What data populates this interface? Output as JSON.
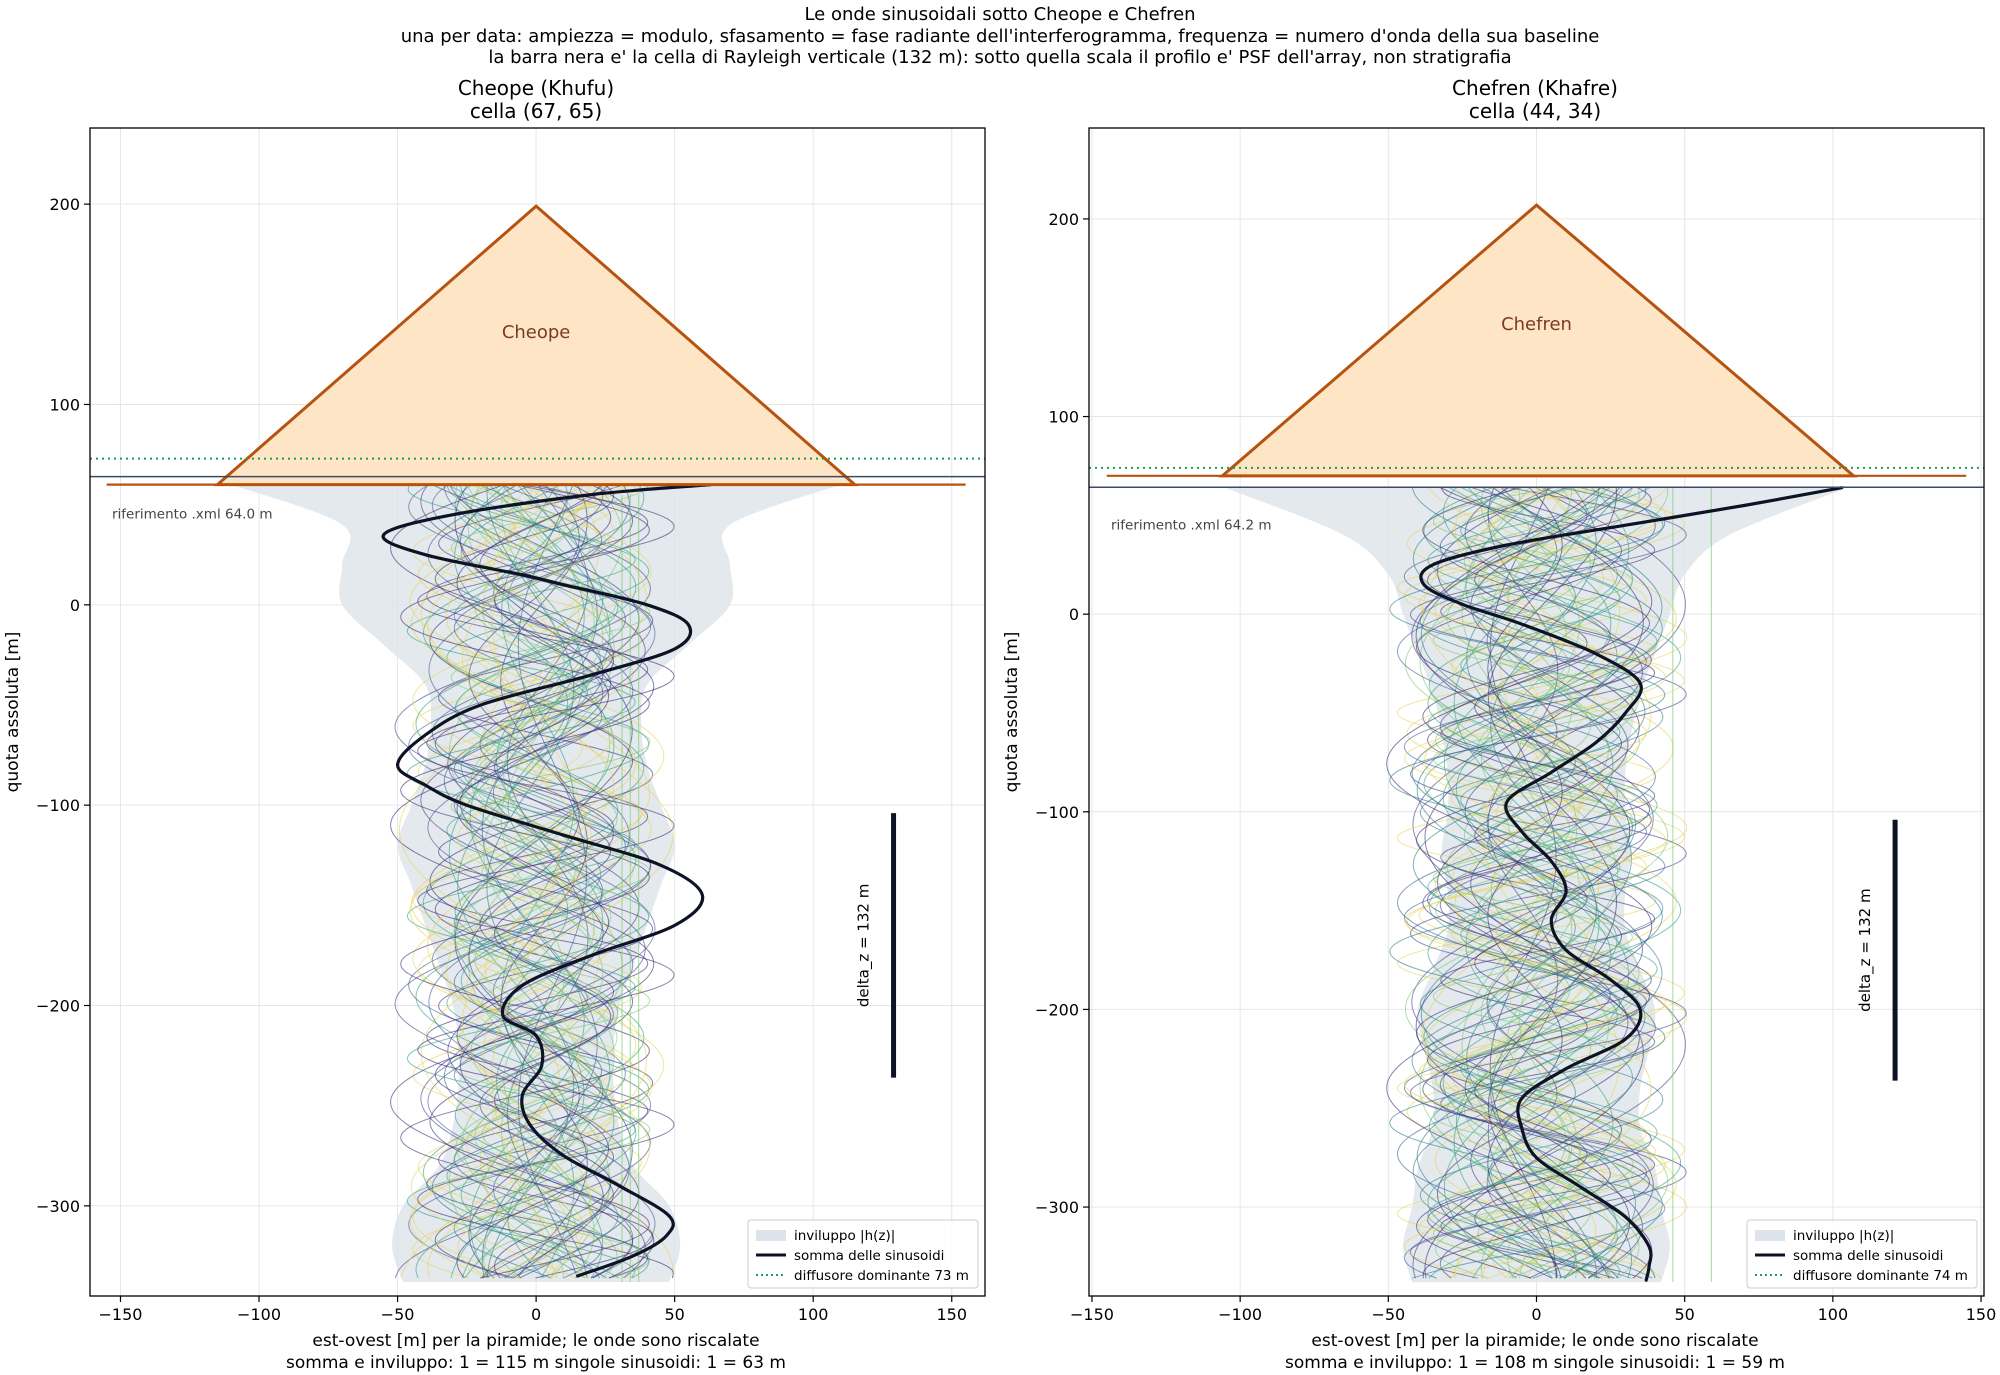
{
  "figure": {
    "suptitle": [
      "Le onde sinusoidali sotto Cheope e Chefren",
      "una per data: ampiezza = modulo, sfasamento = fase radiante dell'interferogramma, frequenza = numero d'onda della sua baseline",
      "la barra nera e' la cella di Rayleigh verticale (132 m): sotto quella scala il profilo e' PSF dell'array, non stratigrafia"
    ]
  },
  "colors": {
    "pyramid_fill": "#fde5c5",
    "pyramid_edge": "#b5530f",
    "sum_curve": "#0d1325",
    "envelope": "#dde3ea",
    "dominant_line": "#1a9e55",
    "reference_line": "#3c4a6a",
    "delta_bar": "#0d1325",
    "sinusoid_palette": [
      "#3b2c75",
      "#46418a",
      "#3e5f94",
      "#2f7d8e",
      "#33a084",
      "#7ec876",
      "#e8d45a"
    ]
  },
  "chart_data": [
    {
      "type": "line",
      "title": [
        "Cheope (Khufu)",
        "cella (67, 65)"
      ],
      "xlabel": [
        "est-ovest [m] per la piramide; le onde sono riscalate",
        "somma e inviluppo: 1 = 115 m   singole sinusoidi: 1 = 63 m"
      ],
      "ylabel": "quota assoluta [m]",
      "xlim": [
        -161,
        162
      ],
      "ylim": [
        -345,
        238
      ],
      "xticks": [
        -150,
        -100,
        -50,
        0,
        50,
        100,
        150
      ],
      "yticks": [
        -300,
        -200,
        -100,
        0,
        100,
        200
      ],
      "xtick_labels": [
        "−150",
        "−100",
        "−50",
        "0",
        "50",
        "100",
        "150"
      ],
      "ytick_labels": [
        "−300",
        "−200",
        "−100",
        "0",
        "100",
        "200"
      ],
      "grid": true,
      "pyramid": {
        "label": "Cheope",
        "apex": [
          0,
          199
        ],
        "base_left": [
          -115,
          60
        ],
        "base_right": [
          115,
          60
        ],
        "ground_line": [
          -155,
          155
        ]
      },
      "reference": {
        "label": "riferimento .xml  64.0 m",
        "elevation": 64.0
      },
      "dominant_scatterer": {
        "elevation": 73
      },
      "rayleigh_cell": {
        "label": "delta_z = 132 m",
        "x": 129,
        "z_top": -104,
        "z_bottom": -236
      },
      "legend": {
        "placement": "lower right",
        "entries": [
          "inviluppo |h(z)|",
          "somma delle sinusoidi",
          "diffusore dominante  73 m"
        ]
      },
      "series": [
        {
          "name": "somma delle sinusoidi",
          "z": [
            60,
            55,
            45,
            35,
            25,
            15,
            10,
            0,
            -10,
            -22,
            -35,
            -50,
            -65,
            -80,
            -90,
            -100,
            -115,
            -130,
            -145,
            -160,
            -175,
            -190,
            -205,
            -215,
            -230,
            -245,
            -260,
            -275,
            -290,
            -305,
            -315,
            -325,
            -335
          ],
          "x": [
            63,
            20,
            -30,
            -55,
            -40,
            -5,
            10,
            40,
            55,
            50,
            20,
            -20,
            -40,
            -50,
            -40,
            -25,
            10,
            45,
            60,
            50,
            20,
            -5,
            -12,
            0,
            2,
            -5,
            -2,
            10,
            30,
            48,
            47,
            35,
            15
          ]
        },
        {
          "name": "inviluppo |h(z)|",
          "z": [
            60,
            40,
            20,
            0,
            -20,
            -40,
            -60,
            -80,
            -100,
            -120,
            -140,
            -160,
            -180,
            -200,
            -220,
            -240,
            -260,
            -280,
            -300,
            -320,
            -338
          ],
          "x": [
            110,
            70,
            70,
            70,
            55,
            40,
            38,
            40,
            45,
            50,
            45,
            40,
            35,
            30,
            28,
            28,
            30,
            35,
            48,
            52,
            48
          ]
        }
      ]
    },
    {
      "type": "line",
      "title": [
        "Chefren (Khafre)",
        "cella (44, 34)"
      ],
      "xlabel": [
        "est-ovest [m] per la piramide; le onde sono riscalate",
        "somma e inviluppo: 1 = 108 m   singole sinusoidi: 1 = 59 m"
      ],
      "ylabel": "quota assoluta [m]",
      "xlim": [
        -151,
        151
      ],
      "ylim": [
        -345,
        246
      ],
      "xticks": [
        -150,
        -100,
        -50,
        0,
        50,
        100,
        150
      ],
      "yticks": [
        -300,
        -200,
        -100,
        0,
        100,
        200
      ],
      "xtick_labels": [
        "−150",
        "−100",
        "−50",
        "0",
        "50",
        "100",
        "150"
      ],
      "ytick_labels": [
        "−300",
        "−200",
        "−100",
        "0",
        "100",
        "200"
      ],
      "grid": true,
      "pyramid": {
        "label": "Chefren",
        "apex": [
          0,
          207
        ],
        "base_left": [
          -106,
          70
        ],
        "base_right": [
          107,
          70
        ],
        "ground_line": [
          -145,
          145
        ]
      },
      "reference": {
        "label": "riferimento .xml  64.2 m",
        "elevation": 64.2
      },
      "dominant_scatterer": {
        "elevation": 74
      },
      "rayleigh_cell": {
        "label": "delta_z = 132 m",
        "x": 121,
        "z_top": -104,
        "z_bottom": -236
      },
      "legend": {
        "placement": "lower right",
        "entries": [
          "inviluppo |h(z)|",
          "somma delle sinusoidi",
          "diffusore dominante  74 m"
        ]
      },
      "series": [
        {
          "name": "somma delle sinusoidi",
          "z": [
            64,
            55,
            45,
            35,
            25,
            15,
            5,
            -5,
            -20,
            -35,
            -50,
            -65,
            -80,
            -95,
            -110,
            -125,
            -140,
            -155,
            -170,
            -185,
            -200,
            -215,
            -230,
            -245,
            -260,
            -275,
            -290,
            -305,
            -320,
            -330,
            -337
          ],
          "x": [
            103,
            70,
            30,
            -10,
            -35,
            -38,
            -25,
            -5,
            20,
            35,
            30,
            20,
            5,
            -10,
            -5,
            5,
            10,
            5,
            10,
            25,
            35,
            30,
            10,
            -5,
            -5,
            0,
            15,
            30,
            38,
            38,
            37
          ]
        },
        {
          "name": "inviluppo |h(z)|",
          "z": [
            64,
            40,
            20,
            0,
            -20,
            -40,
            -60,
            -80,
            -100,
            -120,
            -140,
            -160,
            -180,
            -200,
            -220,
            -240,
            -260,
            -280,
            -300,
            -320,
            -338
          ],
          "x": [
            105,
            65,
            50,
            45,
            40,
            35,
            32,
            30,
            30,
            32,
            30,
            30,
            35,
            40,
            38,
            35,
            35,
            40,
            42,
            45,
            42
          ]
        }
      ]
    }
  ]
}
